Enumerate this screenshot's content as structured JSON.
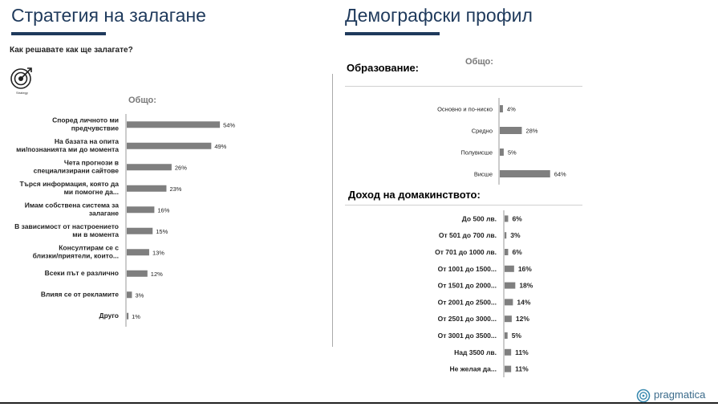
{
  "left": {
    "title": "Стратегия на залагане",
    "question": "Как решавате как ще залагате?",
    "icon_label": "Strategy",
    "subtitle": "Общо:"
  },
  "right": {
    "title": "Демографски профил",
    "education_heading": "Образование:",
    "subtitle": "Общо:",
    "income_heading": "Доход на домакинството:"
  },
  "logo": {
    "name": "pragmatica"
  },
  "colors": {
    "title": "#1f3a5c",
    "bar": "#7f7f7f"
  },
  "chart_data": [
    {
      "type": "bar",
      "orientation": "horizontal",
      "categories": [
        [
          "Според личното ми",
          "предчувствие"
        ],
        [
          "На базата на опита",
          "ми/познанията ми до момента"
        ],
        [
          "Чета прогнози в",
          "специализирани сайтове"
        ],
        [
          "Търся информация, която да",
          "ми помогне да..."
        ],
        [
          "Имам собствена система за",
          "залагане"
        ],
        [
          "В зависимост от настроението",
          "ми в момента"
        ],
        [
          "Консултирам се с",
          "близки/приятели, които..."
        ],
        [
          "Всеки път е различно"
        ],
        [
          "Влияя се от рекламите"
        ],
        [
          "Друго"
        ]
      ],
      "values": [
        54,
        49,
        26,
        23,
        16,
        15,
        13,
        12,
        3,
        1
      ],
      "value_labels": [
        "54%",
        "49%",
        "26%",
        "23%",
        "16%",
        "15%",
        "13%",
        "12%",
        "3%",
        "1%"
      ]
    },
    {
      "type": "bar",
      "orientation": "horizontal",
      "categories": [
        "Основно и по-ниско",
        "Средно",
        "Полувисше",
        "Висше"
      ],
      "values": [
        4,
        28,
        5,
        64
      ],
      "value_labels": [
        "4%",
        "28%",
        "5%",
        "64%"
      ]
    },
    {
      "type": "bar",
      "orientation": "horizontal",
      "categories": [
        "До 500 лв.",
        "От 501 до 700 лв.",
        "От 701 до 1000 лв.",
        "От 1001 до 1500...",
        "От 1501 до 2000...",
        "От 2001 до 2500...",
        "От 2501 до 3000...",
        "От 3001 до 3500...",
        "Над 3500 лв.",
        "Не желая да..."
      ],
      "values": [
        6,
        3,
        6,
        16,
        18,
        14,
        12,
        5,
        11,
        11
      ],
      "value_labels": [
        "6%",
        "3%",
        "6%",
        "16%",
        "18%",
        "14%",
        "12%",
        "5%",
        "11%",
        "11%"
      ]
    }
  ]
}
